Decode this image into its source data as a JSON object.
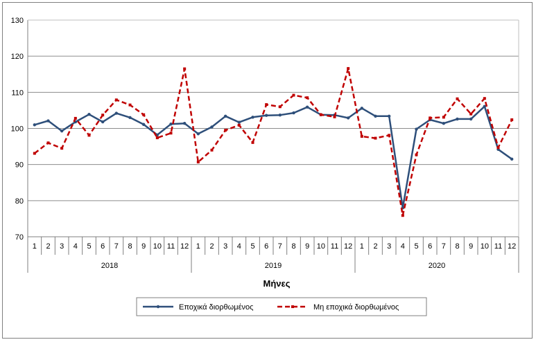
{
  "chart_data": {
    "type": "line",
    "title": "",
    "xlabel": "Μήνες",
    "ylabel": "",
    "ylim": [
      70,
      130
    ],
    "yticks": [
      70,
      80,
      90,
      100,
      110,
      120,
      130
    ],
    "grid": true,
    "legend": "bottom",
    "years": [
      "2018",
      "2019",
      "2020"
    ],
    "months": [
      "1",
      "2",
      "3",
      "4",
      "5",
      "6",
      "7",
      "8",
      "9",
      "10",
      "11",
      "12"
    ],
    "series": [
      {
        "name": "Εποχικά διορθωμένος",
        "color": "#2e4f7a",
        "style": "solid",
        "values": [
          101.0,
          102.1,
          99.3,
          101.8,
          103.9,
          101.8,
          104.2,
          103.0,
          101.1,
          98.2,
          101.2,
          101.4,
          98.5,
          100.4,
          103.4,
          101.7,
          103.1,
          103.6,
          103.7,
          104.3,
          105.9,
          103.8,
          103.7,
          102.9,
          105.6,
          103.4,
          103.4,
          78.0,
          99.8,
          102.4,
          101.4,
          102.6,
          102.6,
          106.1,
          94.2,
          91.5
        ]
      },
      {
        "name": "Μη εποχικά διορθωμένος",
        "color": "#c00000",
        "style": "dashed",
        "values": [
          93.1,
          96.0,
          94.5,
          102.8,
          98.1,
          103.7,
          107.9,
          106.5,
          103.8,
          97.4,
          98.7,
          116.5,
          90.7,
          94.0,
          99.5,
          100.9,
          96.1,
          106.6,
          106.0,
          109.2,
          108.5,
          103.8,
          103.2,
          116.6,
          97.8,
          97.3,
          98.1,
          75.9,
          92.7,
          102.9,
          103.1,
          108.2,
          104.0,
          108.3,
          94.7,
          102.4
        ]
      }
    ]
  }
}
